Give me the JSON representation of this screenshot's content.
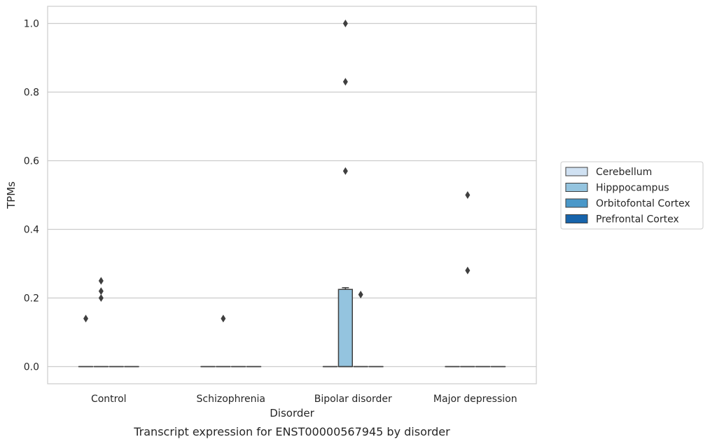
{
  "chart_data": {
    "type": "box",
    "title": "Transcript expression for ENST00000567945 by disorder",
    "xlabel": "Disorder",
    "ylabel": "TPMs",
    "ylim": [
      -0.05,
      1.05
    ],
    "yticks": [
      0.0,
      0.2,
      0.4,
      0.6,
      0.8,
      1.0
    ],
    "ytick_labels": [
      "0.0",
      "0.2",
      "0.4",
      "0.6",
      "0.8",
      "1.0"
    ],
    "grid": true,
    "legend_position": "right",
    "categories": [
      "Control",
      "Schizophrenia",
      "Bipolar disorder",
      "Major depression"
    ],
    "series": [
      {
        "name": "Cerebellum",
        "color": "#d0e1f2",
        "boxes": [
          {
            "q1": 0,
            "median": 0,
            "q3": 0,
            "whisker_low": 0,
            "whisker_high": 0,
            "outliers": [
              0.14
            ]
          },
          {
            "q1": 0,
            "median": 0,
            "q3": 0,
            "whisker_low": 0,
            "whisker_high": 0,
            "outliers": []
          },
          {
            "q1": 0,
            "median": 0,
            "q3": 0,
            "whisker_low": 0,
            "whisker_high": 0,
            "outliers": []
          },
          {
            "q1": 0,
            "median": 0,
            "q3": 0,
            "whisker_low": 0,
            "whisker_high": 0,
            "outliers": []
          }
        ]
      },
      {
        "name": "Hipppocampus",
        "color": "#94c4df",
        "boxes": [
          {
            "q1": 0,
            "median": 0,
            "q3": 0,
            "whisker_low": 0,
            "whisker_high": 0,
            "outliers": [
              0.2,
              0.22,
              0.25
            ]
          },
          {
            "q1": 0,
            "median": 0,
            "q3": 0,
            "whisker_low": 0,
            "whisker_high": 0,
            "outliers": [
              0.14
            ]
          },
          {
            "q1": 0,
            "median": 0,
            "q3": 0.225,
            "whisker_low": 0,
            "whisker_high": 0.23,
            "outliers": [
              0.57,
              0.83,
              1.0
            ]
          },
          {
            "q1": 0,
            "median": 0,
            "q3": 0,
            "whisker_low": 0,
            "whisker_high": 0,
            "outliers": [
              0.28,
              0.5
            ]
          }
        ]
      },
      {
        "name": "Orbitofontal Cortex",
        "color": "#4a98c9",
        "boxes": [
          {
            "q1": 0,
            "median": 0,
            "q3": 0,
            "whisker_low": 0,
            "whisker_high": 0,
            "outliers": []
          },
          {
            "q1": 0,
            "median": 0,
            "q3": 0,
            "whisker_low": 0,
            "whisker_high": 0,
            "outliers": []
          },
          {
            "q1": 0,
            "median": 0,
            "q3": 0,
            "whisker_low": 0,
            "whisker_high": 0,
            "outliers": [
              0.21
            ]
          },
          {
            "q1": 0,
            "median": 0,
            "q3": 0,
            "whisker_low": 0,
            "whisker_high": 0,
            "outliers": []
          }
        ]
      },
      {
        "name": "Prefrontal Cortex",
        "color": "#1764ab",
        "boxes": [
          {
            "q1": 0,
            "median": 0,
            "q3": 0,
            "whisker_low": 0,
            "whisker_high": 0,
            "outliers": []
          },
          {
            "q1": 0,
            "median": 0,
            "q3": 0,
            "whisker_low": 0,
            "whisker_high": 0,
            "outliers": []
          },
          {
            "q1": 0,
            "median": 0,
            "q3": 0,
            "whisker_low": 0,
            "whisker_high": 0,
            "outliers": []
          },
          {
            "q1": 0,
            "median": 0,
            "q3": 0,
            "whisker_low": 0,
            "whisker_high": 0,
            "outliers": []
          }
        ]
      }
    ]
  }
}
